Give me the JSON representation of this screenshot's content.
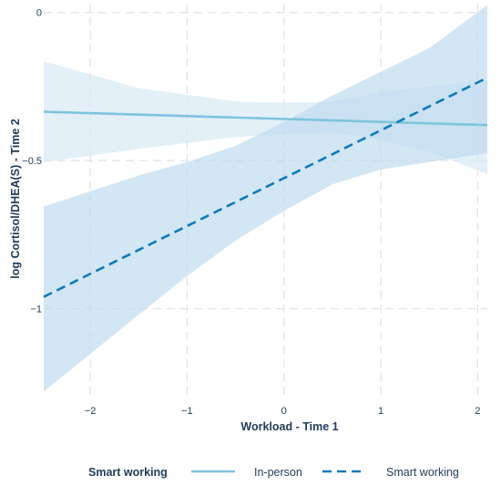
{
  "chart_data": {
    "type": "line",
    "xlabel": "Workload - Time 1",
    "ylabel": "log Cortisol/DHEA(S) - Time 2",
    "xlim": [
      -2.48,
      2.1
    ],
    "ylim": [
      -1.3,
      0.03
    ],
    "x_ticks": [
      -2,
      -1,
      0,
      1,
      2
    ],
    "x_tick_labels": [
      "−2",
      "−1",
      "0",
      "1",
      "2"
    ],
    "y_ticks": [
      0,
      -0.5,
      -1
    ],
    "y_tick_labels": [
      "0",
      "−0.5",
      "−1"
    ],
    "grid": "dashed",
    "legend": {
      "position": "bottom",
      "title": "Smart working"
    },
    "series": [
      {
        "name": "In-person",
        "line_style": "solid",
        "color": "#7ec4de",
        "band_color": "#d7eaf5",
        "x": [
          -2.48,
          2.1
        ],
        "y": [
          -0.335,
          -0.38
        ],
        "ci_x": [
          -2.48,
          -1.5,
          -0.5,
          0,
          0.5,
          1.0,
          1.5,
          2.1
        ],
        "ci_lower": [
          -0.505,
          -0.46,
          -0.42,
          -0.41,
          -0.405,
          -0.43,
          -0.47,
          -0.545
        ],
        "ci_upper": [
          -0.165,
          -0.255,
          -0.3,
          -0.305,
          -0.3,
          -0.27,
          -0.25,
          -0.23
        ]
      },
      {
        "name": "Smart working",
        "line_style": "dashed",
        "color": "#0e7bb8",
        "band_color": "#bcd9ee",
        "x": [
          -2.48,
          2.1
        ],
        "y": [
          -0.96,
          -0.22
        ],
        "ci_x": [
          -2.48,
          -1.5,
          -1.0,
          -0.5,
          0,
          0.5,
          1.0,
          1.5,
          2.1
        ],
        "ci_lower": [
          -1.28,
          -1.02,
          -0.89,
          -0.77,
          -0.67,
          -0.58,
          -0.53,
          -0.505,
          -0.475
        ],
        "ci_upper": [
          -0.655,
          -0.55,
          -0.505,
          -0.45,
          -0.37,
          -0.28,
          -0.2,
          -0.12,
          0.025
        ]
      }
    ]
  }
}
